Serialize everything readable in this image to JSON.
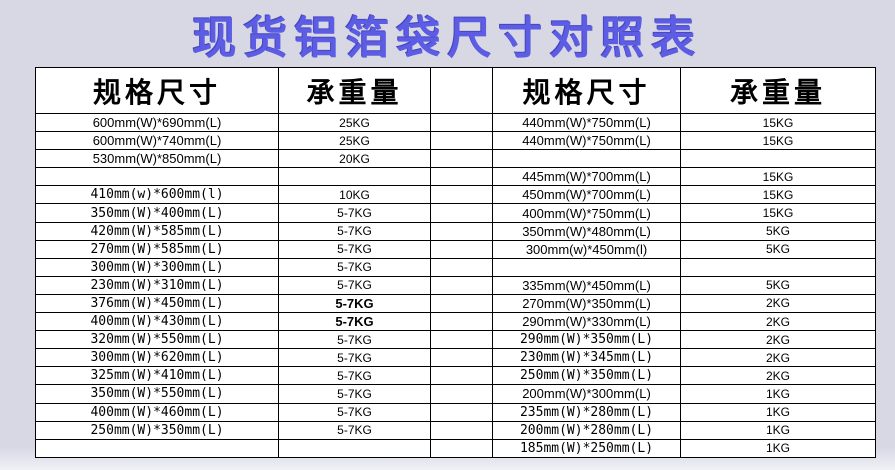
{
  "title": "现货铝箔袋尺寸对照表",
  "colors": {
    "title_blue": "#5c5ce4",
    "red_text": "#f20000",
    "page_background": "#d7d8e3",
    "table_background": "#ffffff",
    "border": "#000000"
  },
  "table": {
    "header": {
      "spec": "规格尺寸",
      "weight": "承重量"
    },
    "rows": [
      {
        "left_spec": "600mm(W)*690mm(L)",
        "left_spec_font": "sans",
        "left_spec_color": "red",
        "left_weight": "25KG",
        "left_weight_bold": false,
        "right_spec": "440mm(W)*750mm(L)",
        "right_spec_font": "sans",
        "right_weight": "15KG"
      },
      {
        "left_spec": "600mm(W)*740mm(L)",
        "left_spec_font": "sans",
        "left_spec_color": "red",
        "left_weight": "25KG",
        "left_weight_bold": false,
        "right_spec": "440mm(W)*750mm(L)",
        "right_spec_font": "sans",
        "right_weight": "15KG"
      },
      {
        "left_spec": "530mm(W)*850mm(L)",
        "left_spec_font": "sans",
        "left_spec_color": "red",
        "left_weight": "20KG",
        "left_weight_bold": false,
        "right_spec": "",
        "right_spec_font": "sans",
        "right_weight": ""
      },
      {
        "left_spec": "",
        "left_spec_font": "mono",
        "left_spec_color": "black",
        "left_weight": "",
        "left_weight_bold": false,
        "right_spec": "445mm(W)*700mm(L)",
        "right_spec_font": "sans",
        "right_weight": "15KG"
      },
      {
        "left_spec": "410mm(w)*600mm(l)",
        "left_spec_font": "mono",
        "left_spec_color": "black",
        "left_weight": "10KG",
        "left_weight_bold": false,
        "right_spec": "450mm(W)*700mm(L)",
        "right_spec_font": "sans",
        "right_weight": "15KG"
      },
      {
        "left_spec": "350mm(W)*400mm(L)",
        "left_spec_font": "mono",
        "left_spec_color": "black",
        "left_weight": "5-7KG",
        "left_weight_bold": false,
        "right_spec": "400mm(W)*750mm(L)",
        "right_spec_font": "sans",
        "right_weight": "15KG"
      },
      {
        "left_spec": "420mm(W)*585mm(L)",
        "left_spec_font": "mono",
        "left_spec_color": "black",
        "left_weight": "5-7KG",
        "left_weight_bold": false,
        "right_spec": "350mm(W)*480mm(L)",
        "right_spec_font": "sans",
        "right_weight": "5KG"
      },
      {
        "left_spec": "270mm(W)*585mm(L)",
        "left_spec_font": "mono",
        "left_spec_color": "black",
        "left_weight": "5-7KG",
        "left_weight_bold": false,
        "right_spec": "300mm(w)*450mm(l)",
        "right_spec_font": "sans",
        "right_weight": "5KG"
      },
      {
        "left_spec": "300mm(W)*300mm(L)",
        "left_spec_font": "mono",
        "left_spec_color": "black",
        "left_weight": "5-7KG",
        "left_weight_bold": false,
        "right_spec": "",
        "right_spec_font": "sans",
        "right_weight": ""
      },
      {
        "left_spec": "230mm(W)*310mm(L)",
        "left_spec_font": "mono",
        "left_spec_color": "black",
        "left_weight": "5-7KG",
        "left_weight_bold": false,
        "right_spec": "335mm(W)*450mm(L)",
        "right_spec_font": "sans",
        "right_weight": "5KG"
      },
      {
        "left_spec": "376mm(W)*450mm(L)",
        "left_spec_font": "mono",
        "left_spec_color": "black",
        "left_weight": "5-7KG",
        "left_weight_bold": true,
        "right_spec": "270mm(W)*350mm(L)",
        "right_spec_font": "sans",
        "right_weight": "2KG"
      },
      {
        "left_spec": "400mm(W)*430mm(L)",
        "left_spec_font": "mono",
        "left_spec_color": "black",
        "left_weight": "5-7KG",
        "left_weight_bold": true,
        "right_spec": "290mm(W)*330mm(L)",
        "right_spec_font": "sans",
        "right_weight": "2KG"
      },
      {
        "left_spec": "320mm(W)*550mm(L)",
        "left_spec_font": "mono",
        "left_spec_color": "black",
        "left_weight": "5-7KG",
        "left_weight_bold": false,
        "right_spec": "290mm(W)*350mm(L)",
        "right_spec_font": "mono",
        "right_weight": "2KG"
      },
      {
        "left_spec": "300mm(W)*620mm(L)",
        "left_spec_font": "mono",
        "left_spec_color": "black",
        "left_weight": "5-7KG",
        "left_weight_bold": false,
        "right_spec": "230mm(W)*345mm(L)",
        "right_spec_font": "mono",
        "right_weight": "2KG"
      },
      {
        "left_spec": "325mm(W)*410mm(L)",
        "left_spec_font": "mono",
        "left_spec_color": "black",
        "left_weight": "5-7KG",
        "left_weight_bold": false,
        "right_spec": "250mm(W)*350mm(L)",
        "right_spec_font": "mono",
        "right_weight": "2KG"
      },
      {
        "left_spec": "350mm(W)*550mm(L)",
        "left_spec_font": "mono",
        "left_spec_color": "black",
        "left_weight": "5-7KG",
        "left_weight_bold": false,
        "right_spec": "200mm(W)*300mm(L)",
        "right_spec_font": "sans",
        "right_weight": "1KG"
      },
      {
        "left_spec": "400mm(W)*460mm(L)",
        "left_spec_font": "mono",
        "left_spec_color": "black",
        "left_weight": "5-7KG",
        "left_weight_bold": false,
        "right_spec": "235mm(W)*280mm(L)",
        "right_spec_font": "mono",
        "right_weight": "1KG"
      },
      {
        "left_spec": "250mm(W)*350mm(L)",
        "left_spec_font": "mono",
        "left_spec_color": "black",
        "left_weight": "5-7KG",
        "left_weight_bold": false,
        "right_spec": "200mm(W)*280mm(L)",
        "right_spec_font": "mono",
        "right_weight": "1KG"
      },
      {
        "left_spec": "",
        "left_spec_font": "mono",
        "left_spec_color": "black",
        "left_weight": "",
        "left_weight_bold": false,
        "right_spec": "185mm(W)*250mm(L)",
        "right_spec_font": "mono",
        "right_weight": "1KG"
      }
    ]
  }
}
